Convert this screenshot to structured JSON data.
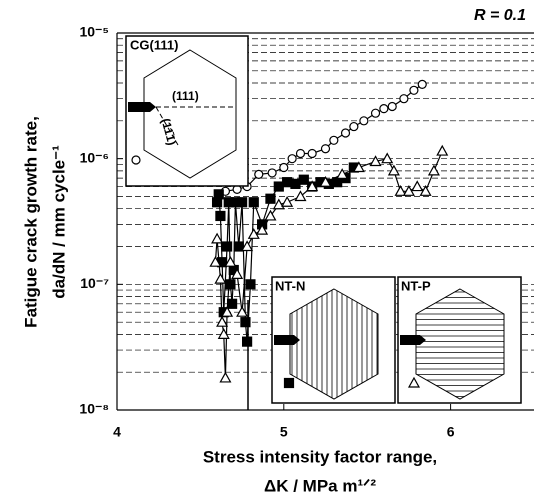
{
  "chart_data": {
    "type": "scatter-line",
    "annotation": "R = 0.1",
    "y_label": [
      "Fatigue crack growth rate,",
      "da/dN / mm cycle⁻¹"
    ],
    "x_label": [
      "Stress intensity factor range,",
      "ΔK / MPa m¹ᐟ²"
    ],
    "xlim": [
      4,
      6.5
    ],
    "xticks": [
      4,
      5,
      6
    ],
    "ylim": [
      1e-08,
      1e-05
    ],
    "log_y": true,
    "grid": "minor-dashed",
    "yticks": [
      {
        "value": 1e-08,
        "label": "10⁻⁸"
      },
      {
        "value": 1e-07,
        "label": "10⁻⁷"
      },
      {
        "value": 1e-06,
        "label": "10⁻⁶"
      },
      {
        "value": 1e-05,
        "label": "10⁻⁵"
      }
    ],
    "plane_labels": [
      "(111)",
      "(11̄1)"
    ],
    "series": [
      {
        "name": "CG(111)",
        "color": "#000000",
        "marker": "circle",
        "marker_fill": "#ffffff",
        "x": [
          4.65,
          4.72,
          4.78,
          4.85,
          4.93,
          5.0,
          5.05,
          5.1,
          5.17,
          5.25,
          5.3,
          5.37,
          5.42,
          5.48,
          5.55,
          5.6,
          5.65,
          5.72,
          5.78,
          5.83
        ],
        "values": [
          5.5e-07,
          5.7e-07,
          6e-07,
          7.5e-07,
          7.7e-07,
          8.5e-07,
          1e-06,
          1.1e-06,
          1.1e-06,
          1.2e-06,
          1.4e-06,
          1.6e-06,
          1.8e-06,
          2e-06,
          2.3e-06,
          2.5e-06,
          2.6e-06,
          3e-06,
          3.5e-06,
          3.9e-06
        ]
      },
      {
        "name": "NT-N",
        "color": "#000000",
        "marker": "square",
        "marker_fill": "#000000",
        "x": [
          4.6,
          4.61,
          4.62,
          4.63,
          4.64,
          4.66,
          4.67,
          4.68,
          4.69,
          4.7,
          4.71,
          4.73,
          4.75,
          4.77,
          4.78,
          4.8,
          4.82,
          4.87,
          4.92,
          4.97,
          5.02,
          5.07,
          5.12,
          5.17,
          5.22,
          5.27,
          5.32,
          5.37,
          5.42
        ],
        "values": [
          4.5e-07,
          5.2e-07,
          3.5e-07,
          1.5e-07,
          6e-08,
          2e-07,
          4.5e-07,
          1e-07,
          7e-08,
          1.3e-07,
          4.5e-07,
          2e-07,
          4.5e-07,
          5e-08,
          3.5e-08,
          1e-07,
          4.5e-07,
          3e-07,
          4.8e-07,
          6e-07,
          6.5e-07,
          6.3e-07,
          6.8e-07,
          6e-07,
          6.5e-07,
          6.3e-07,
          6.5e-07,
          7e-07,
          8.5e-07
        ]
      },
      {
        "name": "NT-P",
        "color": "#000000",
        "marker": "triangle",
        "marker_fill": "#ffffff",
        "x": [
          4.59,
          4.6,
          4.62,
          4.63,
          4.64,
          4.65,
          4.66,
          4.68,
          4.72,
          4.75,
          4.78,
          4.82,
          4.87,
          4.92,
          4.97,
          5.02,
          5.1,
          5.17,
          5.25,
          5.35,
          5.45,
          5.55,
          5.62,
          5.66,
          5.7,
          5.75,
          5.8,
          5.85,
          5.9,
          5.95
        ],
        "values": [
          1.5e-07,
          2.3e-07,
          1.1e-07,
          5e-08,
          4e-08,
          1.8e-08,
          6e-08,
          1.5e-07,
          1.2e-07,
          6e-08,
          2e-07,
          2.5e-07,
          2.7e-07,
          3.5e-07,
          4.3e-07,
          4.5e-07,
          5e-07,
          6e-07,
          6.5e-07,
          7.5e-07,
          8.5e-07,
          9.5e-07,
          1e-06,
          8e-07,
          5.5e-07,
          5.5e-07,
          6e-07,
          5.5e-07,
          8e-07,
          1.15e-06
        ]
      }
    ]
  }
}
